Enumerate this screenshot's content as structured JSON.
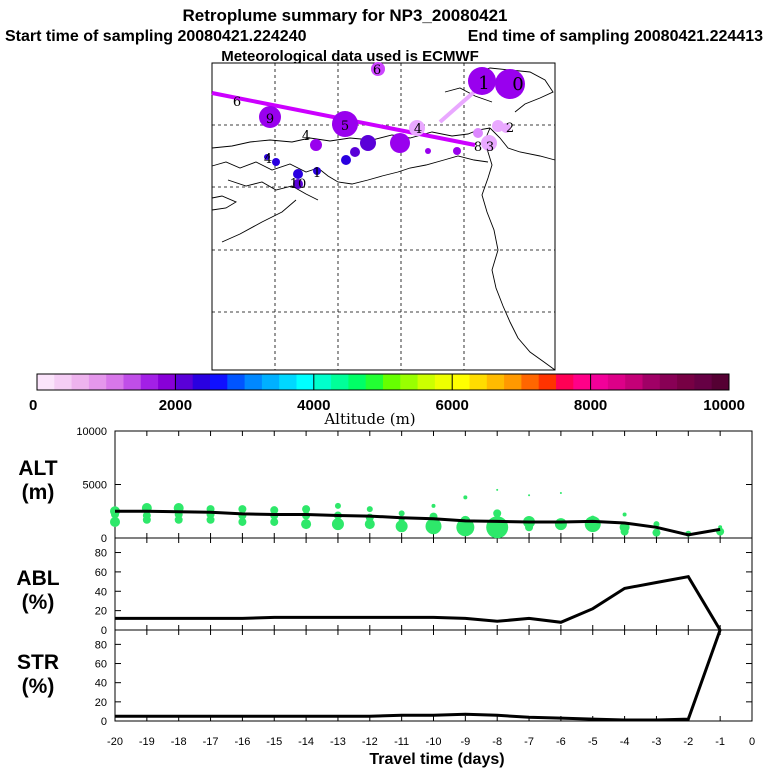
{
  "header": {
    "title": "Retroplume summary for NP3_20080421",
    "start": "Start time of sampling 20080421.224240",
    "end": "End time of sampling 20080421.224413",
    "met": "Meteorological data used is ECMWF"
  },
  "colorbar": {
    "label": "Altitude (m)",
    "ticks": [
      "0",
      "2000",
      "4000",
      "6000",
      "8000",
      "10000"
    ],
    "colors": [
      "#fbe4fb",
      "#f5cdf5",
      "#eeb3ee",
      "#e597ec",
      "#d877ea",
      "#c04ee8",
      "#a320e6",
      "#8800d8",
      "#5a00d8",
      "#2a00e0",
      "#1010ff",
      "#0055ff",
      "#0088ff",
      "#00b0ff",
      "#00d8ff",
      "#00ffff",
      "#00ffcc",
      "#00ff99",
      "#00ff66",
      "#22ff33",
      "#66ff00",
      "#99ff00",
      "#ccff00",
      "#eeff00",
      "#ffff00",
      "#ffdd00",
      "#ffbb00",
      "#ff9900",
      "#ff6600",
      "#ff3300",
      "#ff0055",
      "#ff0088",
      "#f20099",
      "#dd0088",
      "#c40077",
      "#a00066",
      "#880055",
      "#770044",
      "#660044",
      "#550033"
    ]
  },
  "map": {
    "trajectory_labels": [
      {
        "text": "6",
        "tint": "#cc44ff"
      },
      {
        "text": "9",
        "tint": "#9900ee"
      },
      {
        "text": "5",
        "tint": "#9900ee"
      },
      {
        "text": "4",
        "tint": "#dd88ff"
      },
      {
        "text": "3",
        "tint": "#e9a8ff"
      },
      {
        "text": "2",
        "tint": "#e9a8ff"
      },
      {
        "text": "1",
        "tint": "#9900ee"
      },
      {
        "text": "0",
        "tint": "#9900ee"
      },
      {
        "text": "8",
        "tint": "#9900ee"
      },
      {
        "text": "4",
        "tint": "#2200ee"
      },
      {
        "text": "4",
        "tint": "#2200ee"
      },
      {
        "text": "1",
        "tint": "#2200ee"
      },
      {
        "text": "10",
        "tint": "#2200ee"
      },
      {
        "text": "6",
        "tint": "#9900ee"
      }
    ]
  },
  "axes": {
    "xlabel": "Travel time (days)",
    "x_ticks": [
      "-20",
      "-19",
      "-18",
      "-17",
      "-16",
      "-15",
      "-14",
      "-13",
      "-12",
      "-11",
      "-10",
      "-9",
      "-8",
      "-7",
      "-6",
      "-5",
      "-4",
      "-3",
      "-2",
      "-1",
      "0"
    ],
    "alt_ticks": [
      "10000",
      "5000",
      "0"
    ],
    "pct_ticks": [
      "80",
      "60",
      "40",
      "20",
      "0"
    ],
    "alt_label": [
      "ALT",
      "(m)"
    ],
    "abl_label": [
      "ABL",
      "(%)"
    ],
    "str_label": [
      "STR",
      "(%)"
    ]
  },
  "chart_data": [
    {
      "type": "line",
      "title": "ALT",
      "xlabel": "Travel time (days)",
      "ylabel": "ALT (m)",
      "ylim": [
        0,
        10000
      ],
      "x": [
        -20,
        -19,
        -18,
        -17,
        -16,
        -15,
        -14,
        -13,
        -12,
        -11,
        -10,
        -9,
        -8,
        -7,
        -6,
        -5,
        -4,
        -3,
        -2,
        -1
      ],
      "values": [
        2500,
        2500,
        2450,
        2400,
        2250,
        2200,
        2200,
        2100,
        2050,
        1900,
        1800,
        1600,
        1550,
        1500,
        1500,
        1550,
        1400,
        1000,
        300,
        800
      ],
      "clusters": [
        {
          "x": -20,
          "alt": [
            2500,
            2200,
            1500
          ],
          "r": [
            5,
            4,
            5
          ]
        },
        {
          "x": -19,
          "alt": [
            2800,
            2100,
            1700
          ],
          "r": [
            5,
            4,
            4
          ]
        },
        {
          "x": -18,
          "alt": [
            2800,
            2200,
            1700
          ],
          "r": [
            5,
            4,
            4
          ]
        },
        {
          "x": -17,
          "alt": [
            2700,
            2200,
            1700
          ],
          "r": [
            4,
            4,
            4
          ]
        },
        {
          "x": -16,
          "alt": [
            2700,
            2100,
            1500
          ],
          "r": [
            4,
            4,
            4
          ]
        },
        {
          "x": -15,
          "alt": [
            2600,
            2100,
            1500
          ],
          "r": [
            4,
            4,
            4
          ]
        },
        {
          "x": -14,
          "alt": [
            2700,
            2100,
            1300
          ],
          "r": [
            4,
            4,
            5
          ]
        },
        {
          "x": -13,
          "alt": [
            3000,
            2100,
            1300
          ],
          "r": [
            3,
            4,
            6
          ]
        },
        {
          "x": -12,
          "alt": [
            2700,
            1900,
            1300
          ],
          "r": [
            3,
            4,
            5
          ]
        },
        {
          "x": -11,
          "alt": [
            2300,
            1700,
            1100
          ],
          "r": [
            3,
            3,
            6
          ]
        },
        {
          "x": -10,
          "alt": [
            3000,
            2000,
            1100
          ],
          "r": [
            2,
            4,
            8
          ]
        },
        {
          "x": -9,
          "alt": [
            3800,
            1600,
            1000
          ],
          "r": [
            2,
            5,
            9
          ]
        },
        {
          "x": -8,
          "alt": [
            4500,
            2300,
            1000
          ],
          "r": [
            1,
            4,
            11
          ]
        },
        {
          "x": -7,
          "alt": [
            4000,
            1500,
            1000
          ],
          "r": [
            1,
            6,
            4
          ]
        },
        {
          "x": -6,
          "alt": [
            4200,
            1300
          ],
          "r": [
            1,
            6
          ]
        },
        {
          "x": -5,
          "alt": [
            1900,
            1300
          ],
          "r": [
            2,
            8
          ]
        },
        {
          "x": -4,
          "alt": [
            2200,
            1000,
            600
          ],
          "r": [
            2,
            5,
            4
          ]
        },
        {
          "x": -3,
          "alt": [
            1300,
            500
          ],
          "r": [
            3,
            4
          ]
        },
        {
          "x": -2,
          "alt": [
            400
          ],
          "r": [
            3
          ]
        },
        {
          "x": -1,
          "alt": [
            1000,
            600
          ],
          "r": [
            2,
            4
          ]
        }
      ]
    },
    {
      "type": "line",
      "title": "ABL",
      "xlabel": "Travel time (days)",
      "ylabel": "ABL (%)",
      "ylim": [
        0,
        95
      ],
      "x": [
        -20,
        -19,
        -18,
        -17,
        -16,
        -15,
        -14,
        -13,
        -12,
        -11,
        -10,
        -9,
        -8,
        -7,
        -6,
        -5,
        -4,
        -3,
        -2,
        -1
      ],
      "values": [
        12,
        12,
        12,
        12,
        12,
        13,
        13,
        13,
        13,
        13,
        13,
        12,
        9,
        12,
        8,
        22,
        43,
        49,
        55,
        0
      ]
    },
    {
      "type": "line",
      "title": "STR",
      "xlabel": "Travel time (days)",
      "ylabel": "STR (%)",
      "ylim": [
        0,
        95
      ],
      "x": [
        -20,
        -19,
        -18,
        -17,
        -16,
        -15,
        -14,
        -13,
        -12,
        -11,
        -10,
        -9,
        -8,
        -7,
        -6,
        -5,
        -4,
        -3,
        -2,
        -1
      ],
      "values": [
        5,
        5,
        5,
        5,
        5,
        5,
        5,
        5,
        5,
        6,
        6,
        7,
        6,
        4,
        3,
        2,
        1,
        1,
        2,
        95
      ]
    }
  ]
}
